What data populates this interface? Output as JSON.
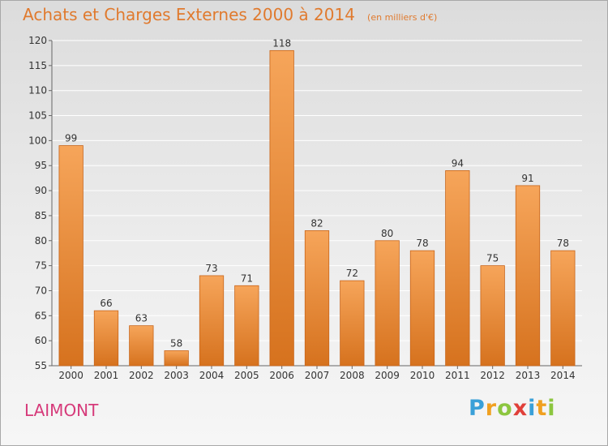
{
  "header": {
    "title": "Achats et Charges Externes 2000 à 2014",
    "subtitle": "(en milliers d'€)"
  },
  "place": "LAIMONT",
  "logo": {
    "letters": [
      {
        "char": "P",
        "color": "#3aa0d8"
      },
      {
        "char": "r",
        "color": "#f0a020"
      },
      {
        "char": "o",
        "color": "#8cc63f"
      },
      {
        "char": "x",
        "color": "#e0403a"
      },
      {
        "char": "i",
        "color": "#3aa0d8"
      },
      {
        "char": "t",
        "color": "#f0a020"
      },
      {
        "char": "i",
        "color": "#8cc63f"
      }
    ]
  },
  "colors": {
    "bar_top": "#f6a55a",
    "bar_bottom": "#d6721e",
    "bar_stroke": "#c8651a",
    "grid": "#ffffff",
    "axis": "#666666"
  },
  "chart_data": {
    "type": "bar",
    "categories": [
      "2000",
      "2001",
      "2002",
      "2003",
      "2004",
      "2005",
      "2006",
      "2007",
      "2008",
      "2009",
      "2010",
      "2011",
      "2012",
      "2013",
      "2014"
    ],
    "values": [
      99,
      66,
      63,
      58,
      73,
      71,
      118,
      82,
      72,
      80,
      78,
      94,
      75,
      91,
      78
    ],
    "value_labels": [
      "99",
      "66",
      "63",
      "58",
      "73",
      "71",
      "118",
      "82",
      "72",
      "80",
      "78",
      "94",
      "75",
      "91",
      "78"
    ],
    "ylim": [
      55,
      120
    ],
    "yticks": [
      55,
      60,
      65,
      70,
      75,
      80,
      85,
      90,
      95,
      100,
      105,
      110,
      115,
      120
    ],
    "ytick_labels": [
      "55",
      "60",
      "65",
      "70",
      "75",
      "80",
      "85",
      "90",
      "95",
      "100",
      "105",
      "110",
      "115",
      "120"
    ],
    "grid": true,
    "title": "Achats et Charges Externes 2000 à 2014",
    "xlabel": "",
    "ylabel": ""
  }
}
